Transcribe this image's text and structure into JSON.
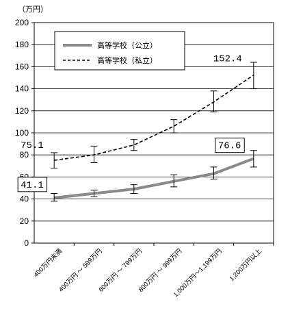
{
  "chart_data": {
    "type": "line",
    "unit_label": "（万円）",
    "ylim": [
      0,
      200
    ],
    "y_ticks": [
      "0",
      "20",
      "40",
      "60",
      "80",
      "100",
      "120",
      "140",
      "160",
      "180",
      "200"
    ],
    "categories": [
      "400万円未満",
      "400万円 ～ 599万円",
      "600万円 ～ 799万円",
      "800万円 ～ 999万円",
      "1,000万円～1,199万円",
      "1,200万円以上"
    ],
    "series": [
      {
        "name": "高等学校（公立）",
        "style": "solid",
        "color": "#8a8a8a",
        "values": [
          41.1,
          45,
          49,
          56,
          63,
          76.6
        ],
        "error_low": [
          38,
          42,
          45,
          51,
          58,
          69
        ],
        "error_high": [
          45,
          48,
          53,
          62,
          69,
          84
        ]
      },
      {
        "name": "高等学校（私立）",
        "style": "dashed",
        "color": "#000000",
        "values": [
          75.1,
          80,
          89,
          106,
          128,
          152.4
        ],
        "error_low": [
          68,
          73,
          84,
          100,
          119,
          140
        ],
        "error_high": [
          82,
          88,
          94,
          112,
          138,
          164
        ]
      }
    ],
    "data_labels": [
      {
        "series": 0,
        "index": 0,
        "text": "41.1",
        "boxed": true
      },
      {
        "series": 1,
        "index": 0,
        "text": "75.1",
        "boxed": false
      },
      {
        "series": 0,
        "index": 5,
        "text": "76.6",
        "boxed": true
      },
      {
        "series": 1,
        "index": 5,
        "text": "152.4",
        "boxed": false
      }
    ],
    "grid": true,
    "legend": "top-left"
  }
}
